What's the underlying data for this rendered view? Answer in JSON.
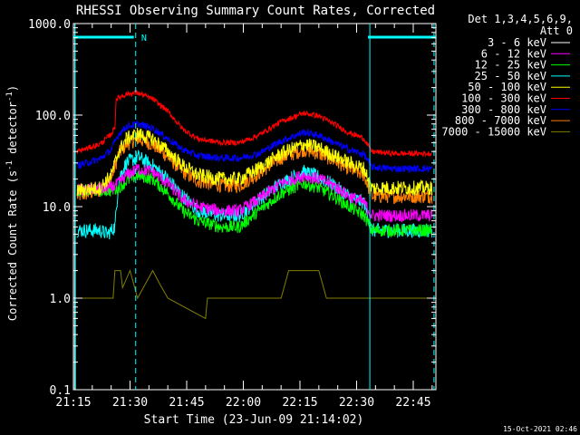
{
  "chart_data": {
    "type": "line",
    "title": "RHESSI Observing Summary Count Rates, Corrected",
    "xlabel": "Start Time (23-Jun-09 21:14:02)",
    "ylabel_main": "Corrected Count Rate (s",
    "ylabel_sup1": "-1",
    "ylabel_mid": " detector",
    "ylabel_sup2": "-1",
    "ylabel_end": ")",
    "y_scale": "log",
    "ylim": [
      0.1,
      1000
    ],
    "y_ticks": [
      "0.1",
      "1.0",
      "10.0",
      "100.0",
      "1000.0"
    ],
    "x_range_min": [
      1.0,
      97.0
    ],
    "x_ticks": [
      {
        "label": "21:15",
        "min": 1
      },
      {
        "label": "21:30",
        "min": 16
      },
      {
        "label": "21:45",
        "min": 31
      },
      {
        "label": "22:00",
        "min": 46
      },
      {
        "label": "22:15",
        "min": 61
      },
      {
        "label": "22:30",
        "min": 76
      },
      {
        "label": "22:45",
        "min": 91
      }
    ],
    "legend_header": [
      "Det 1,3,4,5,6,9,",
      "Att 0"
    ],
    "timestamp": "15-Oct-2021 02:46",
    "night_marker_label": "N",
    "series": [
      {
        "name": "3 - 6 keV",
        "color": "#ffffff",
        "points": [
          [
            1,
            0.1
          ],
          [
            1.3,
            0.1
          ],
          [
            1.4,
            1000
          ],
          [
            1.5,
            0.1
          ],
          [
            97,
            0.1
          ]
        ],
        "noise": 0,
        "draw_as_curve": false
      },
      {
        "name": "6 - 12 keV",
        "color": "#ff00ff",
        "points": [
          [
            2,
            15
          ],
          [
            11,
            16
          ],
          [
            13,
            18
          ],
          [
            15,
            22
          ],
          [
            18,
            26
          ],
          [
            22,
            24
          ],
          [
            26,
            18
          ],
          [
            30,
            12
          ],
          [
            34,
            10
          ],
          [
            40,
            9
          ],
          [
            45,
            9
          ],
          [
            50,
            12
          ],
          [
            56,
            18
          ],
          [
            62,
            22
          ],
          [
            66,
            20
          ],
          [
            70,
            17
          ],
          [
            74,
            13
          ],
          [
            78,
            11
          ],
          [
            80,
            8
          ],
          [
            86,
            8
          ],
          [
            96,
            8
          ]
        ],
        "noise": 0.07
      },
      {
        "name": "12 - 25 keV",
        "color": "#00ff00",
        "points": [
          [
            2,
            15
          ],
          [
            11,
            15
          ],
          [
            13,
            16
          ],
          [
            15,
            19
          ],
          [
            18,
            22
          ],
          [
            22,
            20
          ],
          [
            26,
            14
          ],
          [
            30,
            9
          ],
          [
            34,
            7
          ],
          [
            40,
            6
          ],
          [
            45,
            6
          ],
          [
            50,
            9
          ],
          [
            56,
            14
          ],
          [
            62,
            18
          ],
          [
            66,
            16
          ],
          [
            70,
            13
          ],
          [
            74,
            10
          ],
          [
            78,
            8
          ],
          [
            80,
            5.5
          ],
          [
            86,
            5.5
          ],
          [
            96,
            5.5
          ]
        ],
        "noise": 0.07
      },
      {
        "name": "25 - 50 keV",
        "color": "#00ffff",
        "points": [
          [
            2,
            5.5
          ],
          [
            8,
            5.5
          ],
          [
            10,
            5
          ],
          [
            12,
            6
          ],
          [
            13,
            20
          ],
          [
            15,
            30
          ],
          [
            18,
            35
          ],
          [
            22,
            28
          ],
          [
            26,
            20
          ],
          [
            30,
            13
          ],
          [
            34,
            9
          ],
          [
            40,
            8
          ],
          [
            45,
            8
          ],
          [
            50,
            12
          ],
          [
            56,
            18
          ],
          [
            62,
            24
          ],
          [
            66,
            21
          ],
          [
            70,
            17
          ],
          [
            74,
            13
          ],
          [
            78,
            11
          ],
          [
            80,
            5.5
          ],
          [
            86,
            5.5
          ],
          [
            96,
            5.5
          ]
        ],
        "noise": 0.08
      },
      {
        "name": "50 - 100 keV",
        "color": "#ffff00",
        "points": [
          [
            2,
            15
          ],
          [
            8,
            16
          ],
          [
            11,
            22
          ],
          [
            13,
            40
          ],
          [
            15,
            55
          ],
          [
            18,
            62
          ],
          [
            22,
            55
          ],
          [
            26,
            40
          ],
          [
            30,
            28
          ],
          [
            34,
            22
          ],
          [
            40,
            20
          ],
          [
            45,
            20
          ],
          [
            50,
            26
          ],
          [
            56,
            38
          ],
          [
            62,
            48
          ],
          [
            66,
            44
          ],
          [
            70,
            36
          ],
          [
            74,
            30
          ],
          [
            78,
            26
          ],
          [
            80,
            16
          ],
          [
            86,
            16
          ],
          [
            96,
            16
          ]
        ],
        "noise": 0.08
      },
      {
        "name": "100 - 300 keV",
        "color": "#ff0000",
        "points": [
          [
            2,
            40
          ],
          [
            8,
            48
          ],
          [
            11,
            62
          ],
          [
            12,
            75
          ],
          [
            12.3,
            150
          ],
          [
            15,
            170
          ],
          [
            18,
            175
          ],
          [
            22,
            150
          ],
          [
            26,
            110
          ],
          [
            30,
            70
          ],
          [
            34,
            55
          ],
          [
            40,
            50
          ],
          [
            45,
            50
          ],
          [
            50,
            60
          ],
          [
            56,
            85
          ],
          [
            62,
            105
          ],
          [
            66,
            98
          ],
          [
            70,
            80
          ],
          [
            74,
            64
          ],
          [
            77,
            58
          ],
          [
            78,
            55
          ],
          [
            80,
            40
          ],
          [
            86,
            38
          ],
          [
            96,
            38
          ]
        ],
        "noise": 0.03
      },
      {
        "name": "300 - 800 keV",
        "color": "#0000ff",
        "points": [
          [
            2,
            28
          ],
          [
            8,
            33
          ],
          [
            11,
            42
          ],
          [
            13,
            62
          ],
          [
            15,
            75
          ],
          [
            18,
            80
          ],
          [
            22,
            72
          ],
          [
            26,
            55
          ],
          [
            30,
            42
          ],
          [
            34,
            36
          ],
          [
            40,
            34
          ],
          [
            45,
            34
          ],
          [
            50,
            38
          ],
          [
            56,
            52
          ],
          [
            62,
            65
          ],
          [
            66,
            60
          ],
          [
            70,
            50
          ],
          [
            74,
            42
          ],
          [
            78,
            37
          ],
          [
            80,
            27
          ],
          [
            86,
            26
          ],
          [
            96,
            26
          ]
        ],
        "noise": 0.04
      },
      {
        "name": "800 - 7000 keV",
        "color": "#ff8000",
        "points": [
          [
            2,
            13
          ],
          [
            8,
            15
          ],
          [
            11,
            20
          ],
          [
            13,
            38
          ],
          [
            15,
            48
          ],
          [
            18,
            55
          ],
          [
            22,
            48
          ],
          [
            26,
            35
          ],
          [
            30,
            24
          ],
          [
            34,
            19
          ],
          [
            40,
            17
          ],
          [
            45,
            17
          ],
          [
            50,
            23
          ],
          [
            56,
            34
          ],
          [
            62,
            42
          ],
          [
            66,
            38
          ],
          [
            70,
            32
          ],
          [
            74,
            26
          ],
          [
            78,
            22
          ],
          [
            80,
            13
          ],
          [
            86,
            13
          ],
          [
            96,
            13
          ]
        ],
        "noise": 0.08
      },
      {
        "name": "7000 - 15000 keV",
        "color": "#808000",
        "points": [
          [
            2,
            1
          ],
          [
            10,
            1
          ],
          [
            11,
            1
          ],
          [
            11.5,
            1
          ],
          [
            12,
            2
          ],
          [
            13.5,
            2
          ],
          [
            14,
            1.3
          ],
          [
            16,
            2
          ],
          [
            18,
            1
          ],
          [
            22,
            2
          ],
          [
            24,
            1.4
          ],
          [
            26,
            1
          ],
          [
            36,
            0.6
          ],
          [
            36.5,
            1
          ],
          [
            56,
            1
          ],
          [
            58,
            2
          ],
          [
            66,
            2
          ],
          [
            68,
            1
          ],
          [
            96,
            1
          ]
        ],
        "noise": 0,
        "draw_as_curve": false
      }
    ],
    "flags": [
      {
        "name": "night",
        "color": "#00ffff",
        "segments": [
          [
            1,
            17
          ],
          [
            79,
            97
          ]
        ]
      }
    ],
    "vlines": [
      {
        "min": 1.4,
        "style": "solid",
        "color": "#00ffff"
      },
      {
        "min": 17.5,
        "style": "dashed",
        "color": "#00ffff"
      },
      {
        "min": 79.5,
        "style": "solid",
        "color": "#00ffff"
      },
      {
        "min": 96.5,
        "style": "dashed",
        "color": "#00ffff"
      }
    ]
  }
}
